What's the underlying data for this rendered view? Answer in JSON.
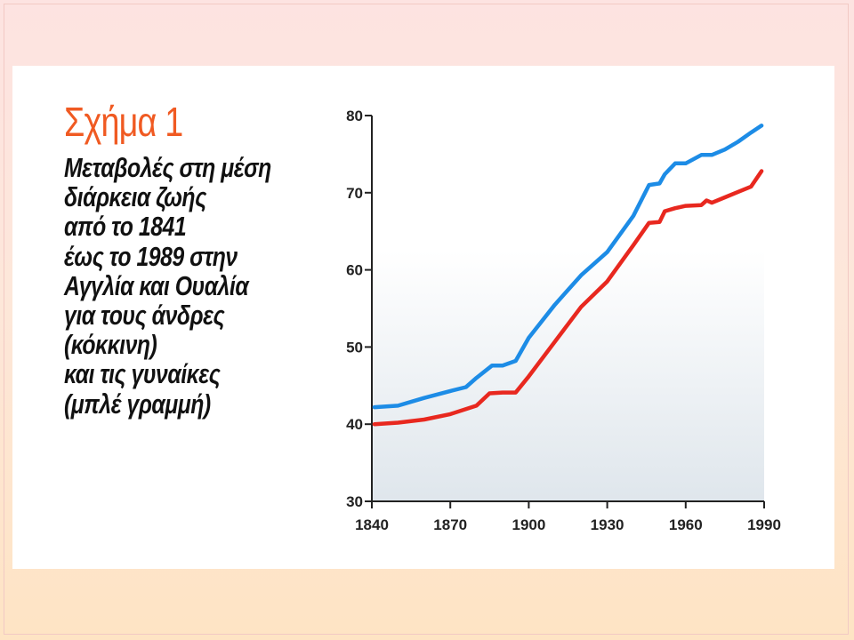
{
  "figure": {
    "label": "Σχήμα 1",
    "caption_lines": [
      "Μεταβολές στη μέση",
      "διάρκεια ζωής",
      "από το 1841",
      "έως το 1989 στην",
      "Αγγλία και Ουαλία",
      "για τους άνδρες",
      "(κόκκινη)",
      "και τις γυναίκες",
      "(μπλέ γραμμή)"
    ]
  },
  "colors": {
    "men": "#e8281f",
    "women": "#1d8ce6",
    "axis": "#222222",
    "plot_background_top": "#ffffff",
    "plot_background_bottom": "#dfe6ec",
    "label_accent": "#f05a22"
  },
  "chart_data": {
    "type": "line",
    "title": "",
    "xlabel": "",
    "ylabel": "",
    "xlim": [
      1840,
      1990
    ],
    "ylim": [
      30,
      80
    ],
    "x_ticks": [
      1840,
      1870,
      1900,
      1930,
      1960,
      1990
    ],
    "y_ticks": [
      30,
      40,
      50,
      60,
      70,
      80
    ],
    "grid": false,
    "series": [
      {
        "key": "women",
        "x": [
          1841,
          1850,
          1860,
          1870,
          1876,
          1880,
          1886,
          1890,
          1895,
          1900,
          1910,
          1920,
          1930,
          1940,
          1946,
          1950,
          1952,
          1956,
          1960,
          1966,
          1970,
          1975,
          1980,
          1985,
          1989
        ],
        "values": [
          42.2,
          42.4,
          43.4,
          44.3,
          44.8,
          46.0,
          47.6,
          47.6,
          48.2,
          51.2,
          55.5,
          59.3,
          62.3,
          67.0,
          71.0,
          71.2,
          72.4,
          73.8,
          73.8,
          74.9,
          74.9,
          75.6,
          76.6,
          77.8,
          78.7
        ]
      },
      {
        "key": "men",
        "x": [
          1841,
          1850,
          1860,
          1870,
          1880,
          1885,
          1890,
          1895,
          1900,
          1910,
          1920,
          1930,
          1940,
          1946,
          1950,
          1952,
          1956,
          1960,
          1966,
          1968,
          1970,
          1975,
          1980,
          1985,
          1989
        ],
        "values": [
          40.0,
          40.2,
          40.6,
          41.3,
          42.4,
          44.0,
          44.1,
          44.1,
          46.2,
          50.7,
          55.2,
          58.5,
          63.2,
          66.1,
          66.2,
          67.6,
          68.0,
          68.3,
          68.4,
          69.0,
          68.7,
          69.4,
          70.1,
          70.8,
          72.8
        ]
      }
    ]
  }
}
